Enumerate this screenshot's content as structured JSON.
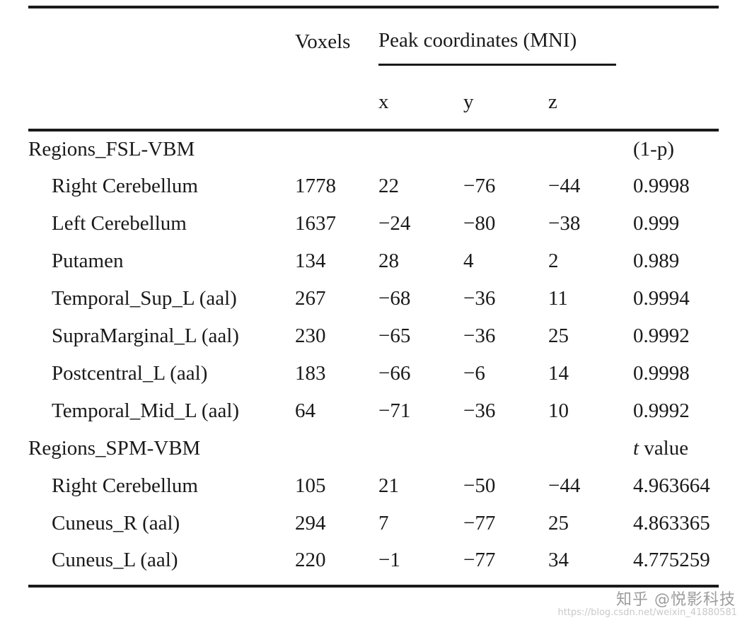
{
  "table": {
    "col_headers": {
      "voxels": "Voxels",
      "peak": "Peak coordinates (MNI)",
      "x": "x",
      "y": "y",
      "z": "z"
    },
    "sections": [
      {
        "title": "Regions_FSL-VBM",
        "stat_label": "(1-p)",
        "rows": [
          {
            "region": "Right Cerebellum",
            "voxels": "1778",
            "x": "22",
            "y": "−76",
            "z": "−44",
            "stat": "0.9998"
          },
          {
            "region": "Left Cerebellum",
            "voxels": "1637",
            "x": "−24",
            "y": "−80",
            "z": "−38",
            "stat": "0.999"
          },
          {
            "region": "Putamen",
            "voxels": "134",
            "x": "28",
            "y": "4",
            "z": "2",
            "stat": "0.989"
          },
          {
            "region": "Temporal_Sup_L (aal)",
            "voxels": "267",
            "x": "−68",
            "y": "−36",
            "z": "11",
            "stat": "0.9994"
          },
          {
            "region": "SupraMarginal_L (aal)",
            "voxels": "230",
            "x": "−65",
            "y": "−36",
            "z": "25",
            "stat": "0.9992"
          },
          {
            "region": "Postcentral_L (aal)",
            "voxels": "183",
            "x": "−66",
            "y": "−6",
            "z": "14",
            "stat": "0.9998"
          },
          {
            "region": "Temporal_Mid_L (aal)",
            "voxels": "64",
            "x": "−71",
            "y": "−36",
            "z": "10",
            "stat": "0.9992"
          }
        ]
      },
      {
        "title": "Regions_SPM-VBM",
        "stat_label_em": "t",
        "stat_label_rest": " value",
        "rows": [
          {
            "region": "Right Cerebellum",
            "voxels": "105",
            "x": "21",
            "y": "−50",
            "z": "−44",
            "stat": "4.963664"
          },
          {
            "region": "Cuneus_R (aal)",
            "voxels": "294",
            "x": "7",
            "y": "−77",
            "z": "25",
            "stat": "4.863365"
          },
          {
            "region": "Cuneus_L (aal)",
            "voxels": "220",
            "x": "−1",
            "y": "−77",
            "z": "34",
            "stat": "4.775259"
          }
        ]
      }
    ]
  },
  "watermark": {
    "line1": "知乎 @悦影科技",
    "line2": "https://blog.csdn.net/weixin_41880581"
  },
  "colors": {
    "background": "#ffffff",
    "text": "#1a1a1a",
    "rule": "#1a1a1a",
    "watermark": "#9c9c9c",
    "watermark_url": "#c9c9c9"
  }
}
